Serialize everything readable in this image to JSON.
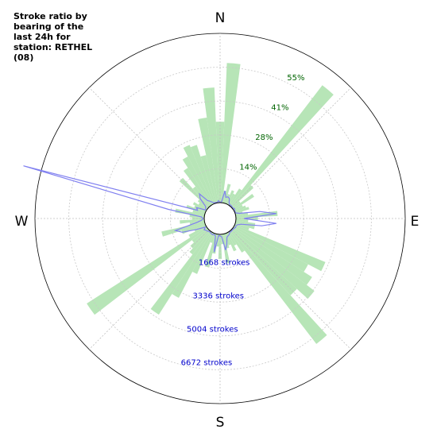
{
  "chart_data": {
    "type": "polar",
    "title": "Stroke ratio by bearing of the last 24h for station: RETHEL (08)",
    "directions": [
      "N",
      "E",
      "S",
      "W"
    ],
    "ratio_ticks": [
      "14%",
      "28%",
      "41%",
      "55%"
    ],
    "count_ticks": [
      "1668 strokes",
      "3336 strokes",
      "5004 strokes",
      "6672 strokes"
    ],
    "ratio_max": 69,
    "count_max": 8340,
    "bin_width_deg": 5,
    "ratio_series": {
      "name": "ratio",
      "color": "#b7e5b7",
      "bearings": [
        0,
        5,
        10,
        15,
        20,
        25,
        30,
        35,
        40,
        45,
        50,
        55,
        60,
        65,
        70,
        75,
        80,
        85,
        90,
        95,
        100,
        105,
        110,
        115,
        120,
        125,
        130,
        135,
        140,
        145,
        150,
        155,
        160,
        165,
        170,
        175,
        180,
        185,
        190,
        195,
        200,
        205,
        210,
        215,
        220,
        225,
        230,
        235,
        240,
        245,
        250,
        255,
        260,
        265,
        270,
        275,
        280,
        285,
        290,
        295,
        300,
        305,
        310,
        315,
        320,
        325,
        330,
        335,
        340,
        345,
        350,
        355
      ],
      "values": [
        33,
        57,
        5,
        8,
        4,
        6,
        5,
        8,
        62,
        12,
        4,
        10,
        4,
        5,
        6,
        3,
        5,
        17,
        9,
        5,
        8,
        8,
        6,
        40,
        34,
        38,
        42,
        36,
        58,
        10,
        6,
        8,
        5,
        6,
        12,
        4,
        10,
        5,
        8,
        14,
        4,
        18,
        30,
        40,
        12,
        10,
        8,
        58,
        8,
        5,
        10,
        18,
        6,
        10,
        5,
        6,
        12,
        5,
        8,
        5,
        6,
        4,
        5,
        16,
        10,
        18,
        22,
        26,
        25,
        20,
        35,
        47
      ]
    },
    "count_series": {
      "name": "strokes",
      "color": "#8080f0",
      "bearings": [
        0,
        5,
        10,
        15,
        20,
        25,
        30,
        35,
        40,
        45,
        50,
        55,
        60,
        65,
        70,
        75,
        80,
        85,
        90,
        95,
        100,
        105,
        110,
        115,
        120,
        125,
        130,
        135,
        140,
        145,
        150,
        155,
        160,
        165,
        170,
        175,
        180,
        185,
        190,
        195,
        200,
        205,
        210,
        215,
        220,
        225,
        230,
        235,
        240,
        245,
        250,
        255,
        260,
        265,
        270,
        275,
        280,
        285,
        290,
        295,
        300,
        305,
        310,
        315,
        320,
        325,
        330,
        335,
        340,
        345,
        350,
        355
      ],
      "values": [
        0,
        50,
        600,
        300,
        350,
        300,
        100,
        50,
        60,
        40,
        30,
        80,
        50,
        30,
        25,
        200,
        1200,
        2000,
        400,
        2000,
        1300,
        300,
        120,
        80,
        100,
        60,
        50,
        40,
        60,
        40,
        120,
        150,
        200,
        500,
        800,
        120,
        80,
        60,
        900,
        100,
        60,
        100,
        80,
        60,
        50,
        100,
        120,
        180,
        60,
        500,
        1200,
        1500,
        400,
        120,
        60,
        150,
        1800,
        9250,
        400,
        500,
        60,
        80,
        150,
        600,
        800,
        300,
        200,
        100,
        40,
        30,
        20,
        100
      ]
    }
  }
}
